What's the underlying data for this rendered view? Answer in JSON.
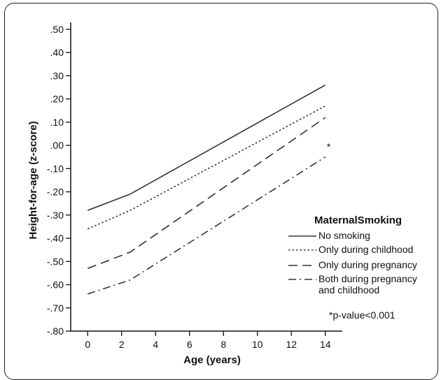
{
  "chart_data": {
    "type": "line",
    "title": "",
    "xlabel": "Age (years)",
    "ylabel": "Height-for-age (z-score)",
    "xlim": [
      -1,
      15
    ],
    "ylim": [
      -0.8,
      0.53
    ],
    "x_ticks": [
      0,
      2,
      4,
      6,
      8,
      10,
      12,
      14
    ],
    "x_tick_labels": [
      "0",
      "2",
      "4",
      "6",
      "8",
      "10",
      "12",
      "14"
    ],
    "y_ticks": [
      0.5,
      0.4,
      0.3,
      0.2,
      0.1,
      0.0,
      -0.1,
      -0.2,
      -0.3,
      -0.4,
      -0.5,
      -0.6,
      -0.7,
      -0.8
    ],
    "y_tick_labels": [
      ".50",
      ".40",
      ".30",
      ".20",
      ".10",
      ".00",
      "-.10",
      "-.20",
      "-.30",
      "-.40",
      "-.50",
      "-.60",
      "-.70",
      "-.80"
    ],
    "grid": false,
    "legend": {
      "title": "MaternalSmoking",
      "placement": "right",
      "entries": [
        {
          "label_lines": [
            "No smoking"
          ],
          "dash": "solid"
        },
        {
          "label_lines": [
            "Only during childhood"
          ],
          "dash": "dotted"
        },
        {
          "label_lines": [
            "Only during pregnancy"
          ],
          "dash": "long-dash"
        },
        {
          "label_lines": [
            "Both during pregnancy",
            "and childhood"
          ],
          "dash": "dash-dot"
        }
      ]
    },
    "series": [
      {
        "dash": "solid",
        "color": "#333333",
        "x": [
          0,
          2.5,
          14
        ],
        "y": [
          -0.28,
          -0.21,
          0.26
        ]
      },
      {
        "dash": "dotted",
        "color": "#333333",
        "x": [
          0,
          2.5,
          14
        ],
        "y": [
          -0.36,
          -0.28,
          0.17
        ]
      },
      {
        "dash": "long-dash",
        "color": "#333333",
        "x": [
          0,
          2.5,
          14
        ],
        "y": [
          -0.53,
          -0.46,
          0.12
        ]
      },
      {
        "dash": "dash-dot",
        "color": "#333333",
        "x": [
          0,
          2.5,
          14
        ],
        "y": [
          -0.64,
          -0.58,
          -0.05
        ]
      }
    ],
    "annotations": [
      {
        "text": "*",
        "x": 14.2,
        "y": -0.02
      },
      {
        "text": "*p-value<0.001"
      }
    ]
  }
}
